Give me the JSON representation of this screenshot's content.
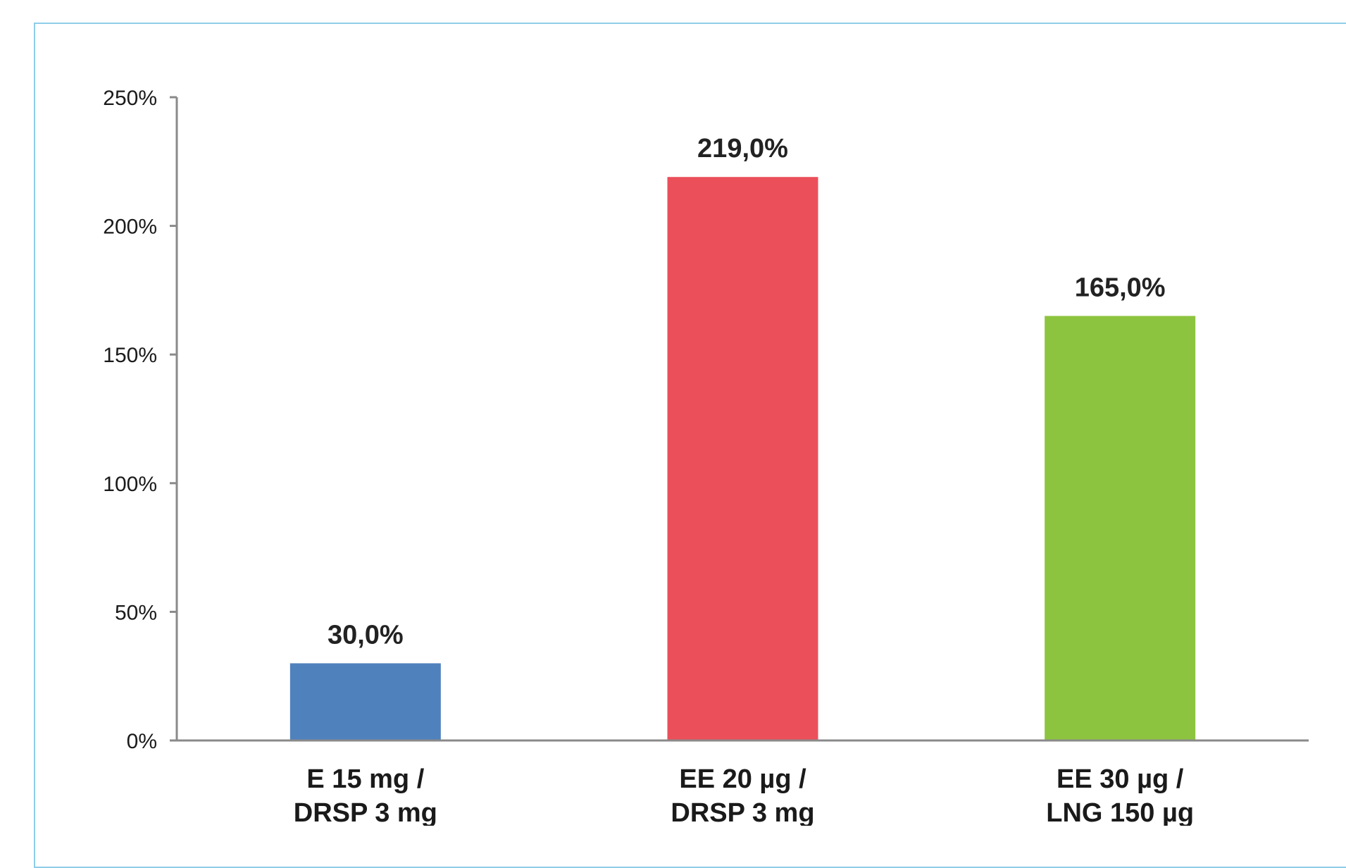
{
  "chart_data": {
    "type": "bar",
    "categories": [
      [
        "E 15 mg /",
        "DRSP 3 mg"
      ],
      [
        "EE 20 µg /",
        "DRSP 3 mg"
      ],
      [
        "EE 30 µg /",
        "LNG 150 µg"
      ]
    ],
    "values": [
      30.0,
      219.0,
      165.0
    ],
    "data_labels": [
      "30,0%",
      "219,0%",
      "165,0%"
    ],
    "colors": [
      "#4f81bd",
      "#eb4f5a",
      "#8dc43f"
    ],
    "ylim": [
      0,
      250
    ],
    "yticks": [
      0,
      50,
      100,
      150,
      200,
      250
    ],
    "ytick_labels": [
      "0%",
      "50%",
      "100%",
      "150%",
      "200%",
      "250%"
    ],
    "title": "",
    "xlabel": "",
    "ylabel": "",
    "grid": false,
    "legend": "none"
  }
}
